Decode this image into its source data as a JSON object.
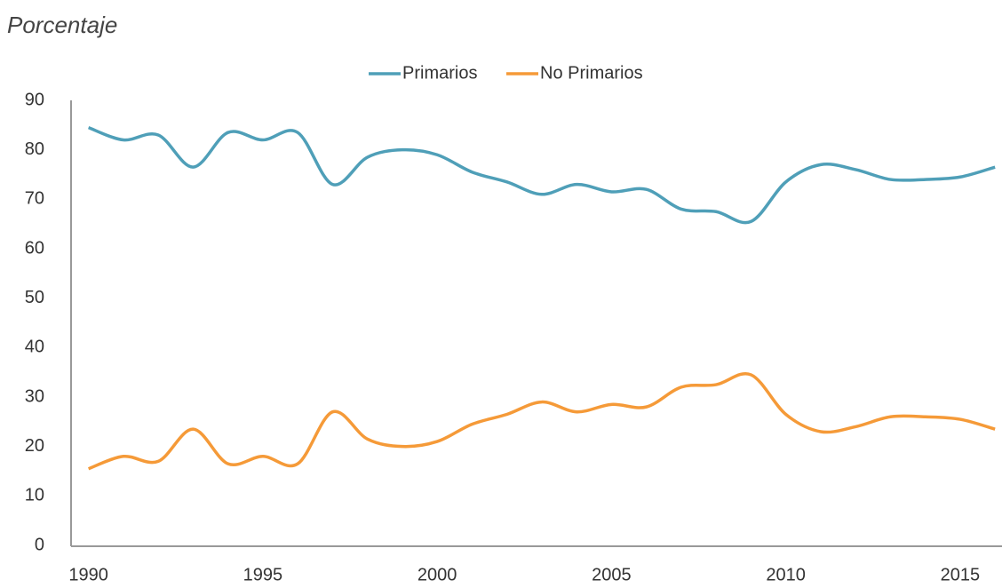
{
  "chart_data": {
    "type": "line",
    "title": "Porcentaje",
    "x": [
      1990,
      1991,
      1992,
      1993,
      1994,
      1995,
      1996,
      1997,
      1998,
      1999,
      2000,
      2001,
      2002,
      2003,
      2004,
      2005,
      2006,
      2007,
      2008,
      2009,
      2010,
      2011,
      2012,
      2013,
      2014,
      2015,
      2016
    ],
    "series": [
      {
        "name": "Primarios",
        "color": "#4f9fb8",
        "values": [
          84.5,
          82,
          83,
          76.5,
          83.5,
          82,
          83.5,
          73,
          78.5,
          80,
          79,
          75.5,
          73.5,
          71,
          73,
          71.5,
          72,
          68,
          67.5,
          65.5,
          73.5,
          77,
          76,
          74,
          74,
          74.5,
          76.5
        ]
      },
      {
        "name": "No Primarios",
        "color": "#f59a38",
        "values": [
          15.5,
          18,
          17,
          23.5,
          16.5,
          18,
          16.5,
          27,
          21.5,
          20,
          21,
          24.5,
          26.5,
          29,
          27,
          28.5,
          28,
          32,
          32.5,
          34.5,
          26.5,
          23,
          24,
          26,
          26,
          25.5,
          23.5
        ]
      }
    ],
    "xlim": [
      1989.5,
      2016.2
    ],
    "xticks": [
      1990,
      1995,
      2000,
      2005,
      2010,
      2015
    ],
    "ylim": [
      0,
      90
    ],
    "yticks": [
      0,
      10,
      20,
      30,
      40,
      50,
      60,
      70,
      80,
      90
    ],
    "grid": false,
    "legend": "top"
  }
}
